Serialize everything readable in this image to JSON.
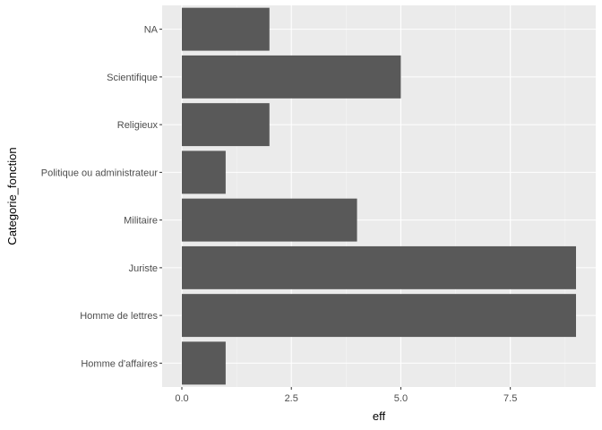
{
  "chart_data": {
    "type": "bar",
    "orientation": "horizontal",
    "categories": [
      "NA",
      "Scientifique",
      "Religieux",
      "Politique ou administrateur",
      "Militaire",
      "Juriste",
      "Homme de lettres",
      "Homme d'affaires"
    ],
    "values": [
      2,
      5,
      2,
      1,
      4,
      9,
      9,
      1
    ],
    "xlabel": "eff",
    "ylabel": "Categorie_fonction",
    "xlim": [
      -0.45,
      9.45
    ],
    "xticks": [
      0,
      2.5,
      5,
      7.5
    ],
    "xtick_labels": [
      "0.0",
      "2.5",
      "5.0",
      "7.5"
    ],
    "grid": true,
    "colors": {
      "bar": "#595959",
      "panel": "#ebebeb",
      "grid_major": "#ffffff",
      "grid_minor": "#f5f5f5"
    }
  }
}
